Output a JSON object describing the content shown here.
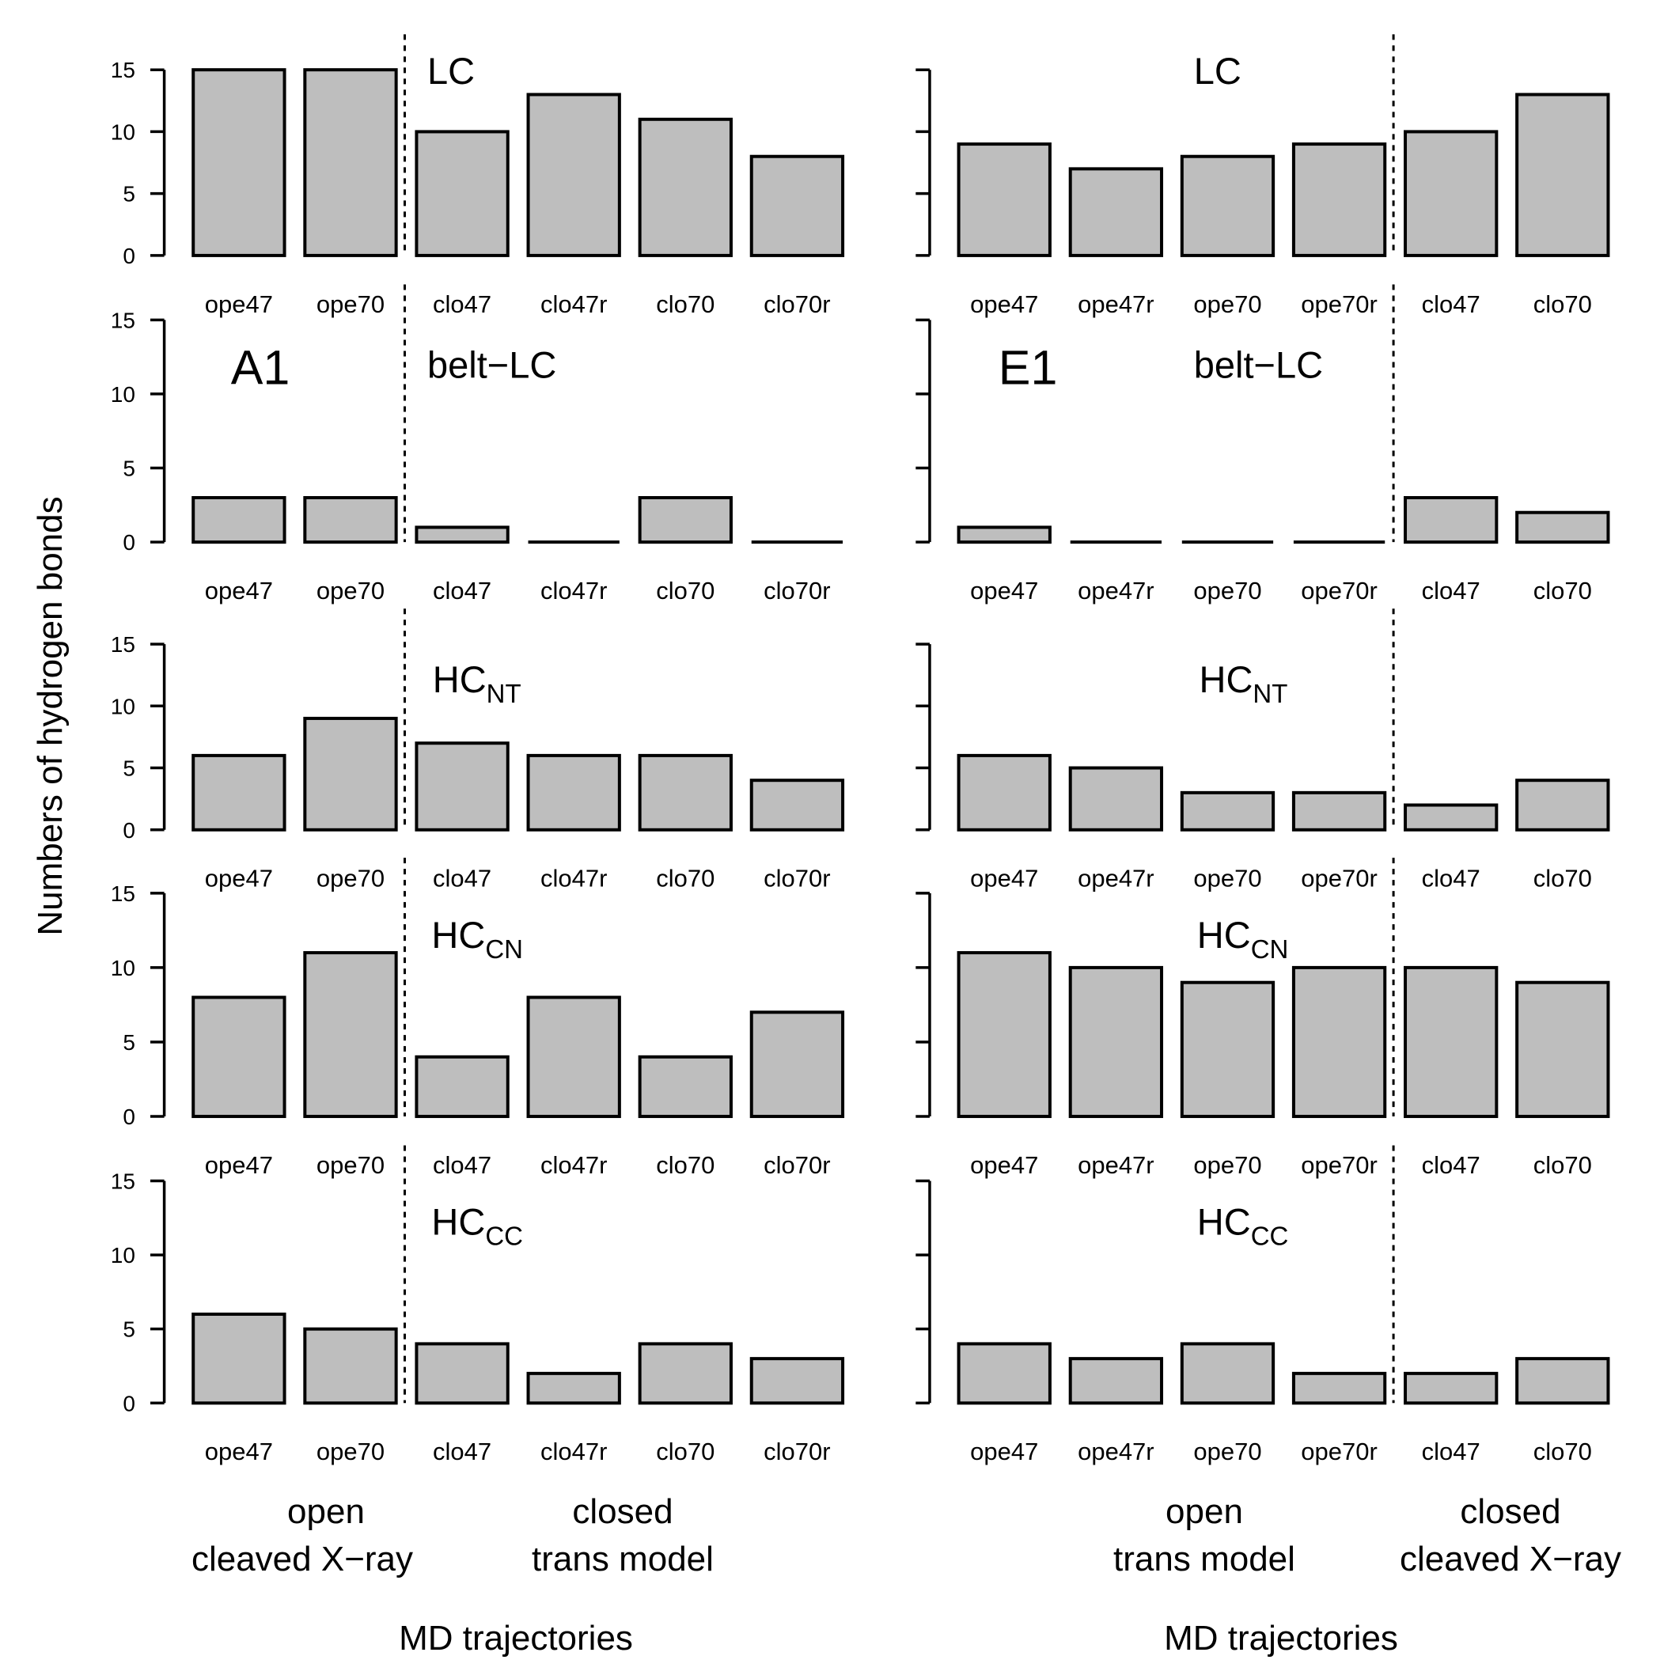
{
  "chart_data": [
    {
      "type": "bar",
      "panel": "A1",
      "title": "LC",
      "ylim": [
        0,
        15
      ],
      "yticks": [
        0,
        5,
        10,
        15
      ],
      "categories": [
        "ope47",
        "ope70",
        "clo47",
        "clo47r",
        "clo70",
        "clo70r"
      ],
      "values": [
        15,
        15,
        10,
        13,
        11,
        8
      ]
    },
    {
      "type": "bar",
      "panel": "A1",
      "title": "belt−LC",
      "side_label": "A1",
      "ylim": [
        0,
        15
      ],
      "yticks": [
        0,
        5,
        10,
        15
      ],
      "categories": [
        "ope47",
        "ope70",
        "clo47",
        "clo47r",
        "clo70",
        "clo70r"
      ],
      "values": [
        3,
        3,
        1,
        0,
        3,
        0
      ]
    },
    {
      "type": "bar",
      "panel": "A1",
      "title": "HC",
      "title_sub": "NT",
      "ylim": [
        0,
        15
      ],
      "yticks": [
        0,
        5,
        10,
        15
      ],
      "categories": [
        "ope47",
        "ope70",
        "clo47",
        "clo47r",
        "clo70",
        "clo70r"
      ],
      "values": [
        6,
        9,
        7,
        6,
        6,
        4
      ]
    },
    {
      "type": "bar",
      "panel": "A1",
      "title": "HC",
      "title_sub": "CN",
      "ylim": [
        0,
        15
      ],
      "yticks": [
        0,
        5,
        10,
        15
      ],
      "categories": [
        "ope47",
        "ope70",
        "clo47",
        "clo47r",
        "clo70",
        "clo70r"
      ],
      "values": [
        8,
        11,
        4,
        8,
        4,
        7
      ]
    },
    {
      "type": "bar",
      "panel": "A1",
      "title": "HC",
      "title_sub": "CC",
      "ylim": [
        0,
        15
      ],
      "yticks": [
        0,
        5,
        10,
        15
      ],
      "categories": [
        "ope47",
        "ope70",
        "clo47",
        "clo47r",
        "clo70",
        "clo70r"
      ],
      "values": [
        6,
        5,
        4,
        2,
        4,
        3
      ]
    },
    {
      "type": "bar",
      "panel": "E1",
      "title": "LC",
      "ylim": [
        0,
        15
      ],
      "yticks": [
        0,
        5,
        10,
        15
      ],
      "categories": [
        "ope47",
        "ope47r",
        "ope70",
        "ope70r",
        "clo47",
        "clo70"
      ],
      "values": [
        9,
        7,
        8,
        9,
        10,
        13
      ]
    },
    {
      "type": "bar",
      "panel": "E1",
      "title": "belt−LC",
      "side_label": "E1",
      "ylim": [
        0,
        15
      ],
      "yticks": [
        0,
        5,
        10,
        15
      ],
      "categories": [
        "ope47",
        "ope47r",
        "ope70",
        "ope70r",
        "clo47",
        "clo70"
      ],
      "values": [
        1,
        0,
        0,
        0,
        3,
        2
      ]
    },
    {
      "type": "bar",
      "panel": "E1",
      "title": "HC",
      "title_sub": "NT",
      "ylim": [
        0,
        15
      ],
      "yticks": [
        0,
        5,
        10,
        15
      ],
      "categories": [
        "ope47",
        "ope47r",
        "ope70",
        "ope70r",
        "clo47",
        "clo70"
      ],
      "values": [
        6,
        5,
        3,
        3,
        2,
        4
      ]
    },
    {
      "type": "bar",
      "panel": "E1",
      "title": "HC",
      "title_sub": "CN",
      "ylim": [
        0,
        15
      ],
      "yticks": [
        0,
        5,
        10,
        15
      ],
      "categories": [
        "ope47",
        "ope47r",
        "ope70",
        "ope70r",
        "clo47",
        "clo70"
      ],
      "values": [
        11,
        10,
        9,
        10,
        10,
        9
      ]
    },
    {
      "type": "bar",
      "panel": "E1",
      "title": "HC",
      "title_sub": "CC",
      "ylim": [
        0,
        15
      ],
      "yticks": [
        0,
        5,
        10,
        15
      ],
      "categories": [
        "ope47",
        "ope47r",
        "ope70",
        "ope70r",
        "clo47",
        "clo70"
      ],
      "values": [
        4,
        3,
        4,
        2,
        2,
        3
      ]
    }
  ],
  "ylabel": "Numbers of hydrogen bonds",
  "left_column": {
    "groups": [
      {
        "line1": "open",
        "line2": "cleaved X−ray"
      },
      {
        "line1": "closed",
        "line2": "trans model"
      }
    ],
    "xlabel": "MD trajectories"
  },
  "right_column": {
    "groups": [
      {
        "line1": "open",
        "line2": "trans model"
      },
      {
        "line1": "closed",
        "line2": "cleaved X−ray"
      }
    ],
    "xlabel": "MD trajectories"
  }
}
